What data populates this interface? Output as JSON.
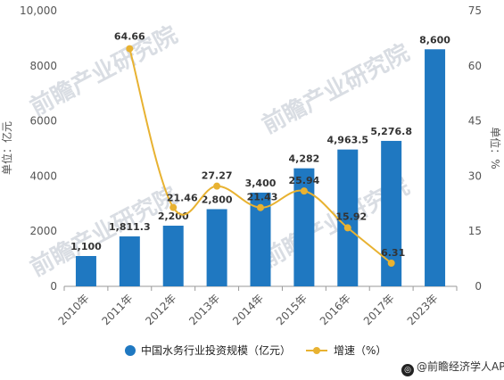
{
  "chart_data": {
    "type": "bar+line",
    "categories": [
      "2010年",
      "2011年",
      "2012年",
      "2013年",
      "2014年",
      "2015年",
      "2016年",
      "2017年",
      "2023年"
    ],
    "series": [
      {
        "name": "中国水务行业投资规模（亿元）",
        "type": "bar",
        "axis": "left",
        "values": [
          1100,
          1811.3,
          2200,
          2800,
          3400,
          4282,
          4963.5,
          5276.8,
          8600
        ],
        "labels": [
          "1,100",
          "1,811.3",
          "2,200",
          "2,800",
          "3,400",
          "4,282",
          "4,963.5",
          "5,276.8",
          "8,600"
        ],
        "color": "#1f78c1"
      },
      {
        "name": "增速（%）",
        "type": "line",
        "axis": "right",
        "values": [
          null,
          64.66,
          21.46,
          27.27,
          21.43,
          25.94,
          15.92,
          6.31,
          null
        ],
        "labels": [
          null,
          "64.66",
          "21.46",
          "27.27",
          "21.43",
          "25.94",
          "15.92",
          "6.31",
          null
        ],
        "color": "#e8b231"
      }
    ],
    "y_left": {
      "label": "单位：亿元",
      "range": [
        0,
        10000
      ],
      "ticks": [
        0,
        2000,
        4000,
        6000,
        8000,
        10000
      ],
      "tick_labels": [
        "0",
        "2000",
        "4000",
        "6000",
        "8000",
        "10,000"
      ]
    },
    "y_right": {
      "label": "单位：%",
      "range": [
        0,
        75
      ],
      "ticks": [
        0,
        15,
        30,
        45,
        60,
        75
      ],
      "tick_labels": [
        "0",
        "15",
        "30",
        "45",
        "60",
        "75"
      ]
    },
    "grid": false,
    "legend_position": "bottom"
  },
  "watermark": "前瞻产业研究院",
  "credit": "@前瞻经济学人APP"
}
